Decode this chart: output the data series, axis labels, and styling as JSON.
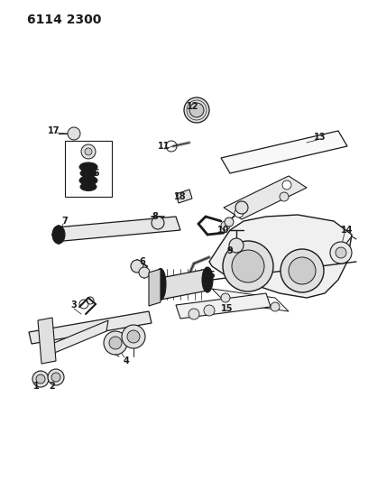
{
  "title": "6114 2300",
  "bg_color": "#ffffff",
  "line_color": "#1a1a1a",
  "label_color": "#1a1a1a",
  "title_fontsize": 10,
  "label_fontsize": 7,
  "fig_width": 4.08,
  "fig_height": 5.33,
  "dpi": 100
}
